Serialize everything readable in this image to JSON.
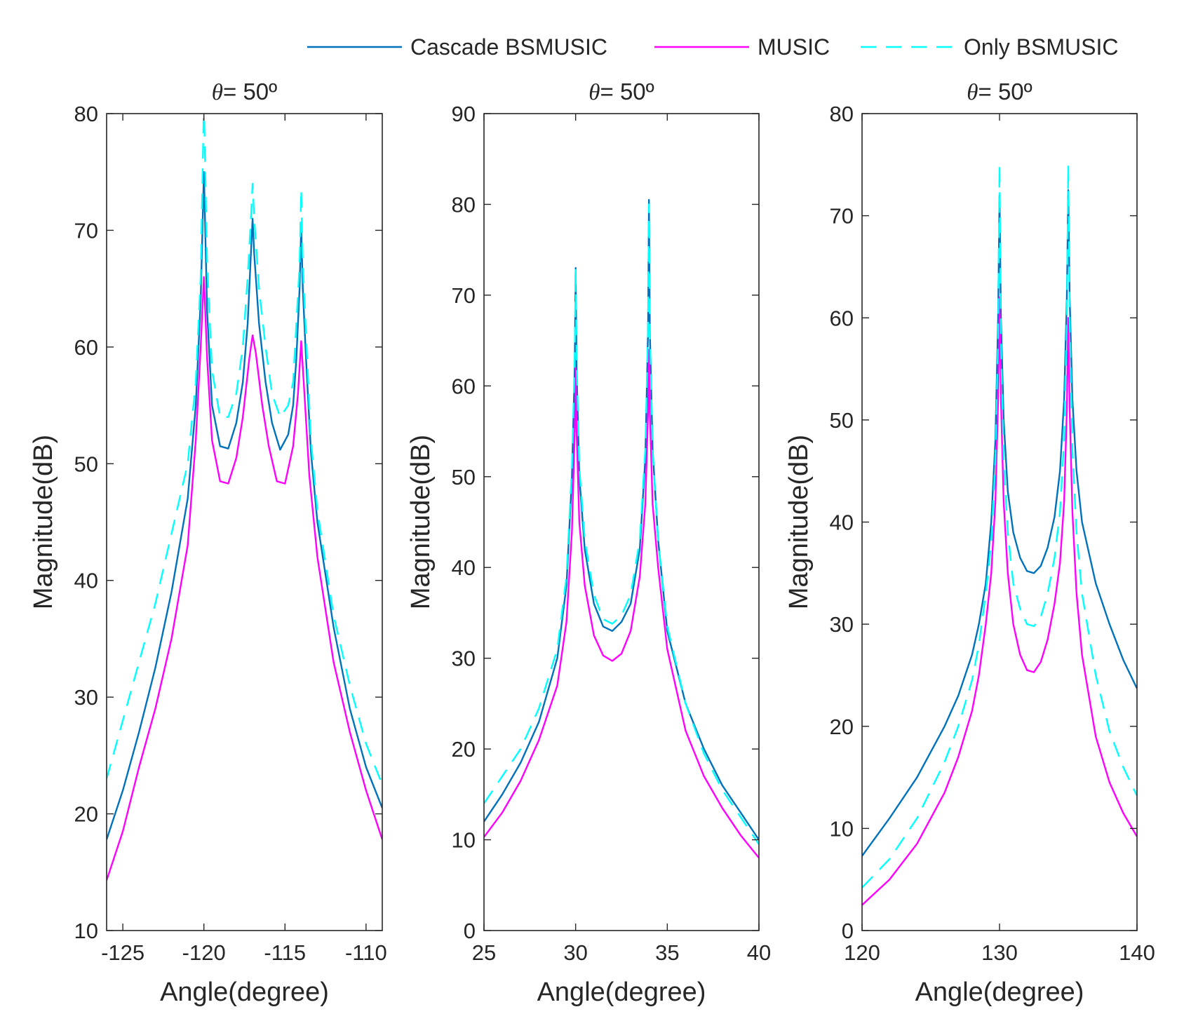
{
  "legend": {
    "placement": "top-center, horizontal",
    "entries": [
      {
        "label": "Cascade BSMUSIC",
        "color": "#0072bd",
        "dash": "solid"
      },
      {
        "label": "MUSIC",
        "color": "#ff00ff",
        "dash": "solid"
      },
      {
        "label": "Only BSMUSIC",
        "color": "#00ffff",
        "dash": "dashed"
      }
    ]
  },
  "colors": {
    "cascade": "#0072bd",
    "music": "#ff00ff",
    "only": "#00ffff",
    "axis": "#262626"
  },
  "chart_data": [
    {
      "type": "line",
      "title_symbol": "θ",
      "title_text": "= 50º",
      "xlabel": "Angle(degree)",
      "ylabel": "Magnitude(dB)",
      "xlim": [
        -126,
        -109
      ],
      "ylim": [
        10,
        80
      ],
      "xticks": [
        -125,
        -120,
        -115,
        -110
      ],
      "xtick_labels": [
        "-125",
        "-120",
        "-115",
        "-110"
      ],
      "yticks": [
        10,
        20,
        30,
        40,
        50,
        60,
        70,
        80
      ],
      "ytick_labels": [
        "10",
        "20",
        "30",
        "40",
        "50",
        "60",
        "70",
        "80"
      ],
      "grid": false,
      "series": [
        {
          "name": "Cascade BSMUSIC",
          "key": "cascade",
          "x": [
            -126,
            -125,
            -124,
            -123,
            -122,
            -121,
            -120.5,
            -120.2,
            -120,
            -119.8,
            -119.5,
            -119,
            -118.5,
            -118,
            -117.6,
            -117.3,
            -117.1,
            -117,
            -116.9,
            -116.6,
            -116.2,
            -115.8,
            -115.3,
            -114.8,
            -114.5,
            -114.3,
            -114.1,
            -114,
            -113.9,
            -113.7,
            -113.4,
            -113,
            -112,
            -111,
            -110,
            -109
          ],
          "y": [
            17.8,
            22,
            27,
            32.5,
            39,
            47,
            55,
            64,
            75,
            63,
            55,
            51.5,
            51.3,
            53.5,
            57,
            62,
            68,
            71,
            68,
            62,
            57,
            53.5,
            51.2,
            52.5,
            55,
            59,
            65,
            70.3,
            65,
            59,
            51,
            45,
            36,
            29,
            24,
            20.5
          ]
        },
        {
          "name": "MUSIC",
          "key": "music",
          "x": [
            -126,
            -125,
            -124,
            -123,
            -122,
            -121,
            -120.5,
            -120.2,
            -120,
            -119.8,
            -119.5,
            -119,
            -118.5,
            -118,
            -117.6,
            -117.2,
            -117,
            -116.8,
            -116.4,
            -116,
            -115.5,
            -115,
            -114.5,
            -114.2,
            -114,
            -113.8,
            -113.5,
            -113,
            -112,
            -111,
            -110,
            -109
          ],
          "y": [
            14.3,
            18.5,
            24,
            29,
            35,
            43,
            52,
            60,
            66,
            59,
            52,
            48.5,
            48.3,
            50.5,
            54,
            59,
            61,
            59.5,
            55,
            51.5,
            48.5,
            48.3,
            51.5,
            56,
            60.5,
            56,
            49,
            42,
            33,
            27,
            22,
            17.8
          ]
        },
        {
          "name": "Only BSMUSIC",
          "key": "only",
          "x": [
            -126,
            -125,
            -124,
            -123,
            -122,
            -121,
            -120.5,
            -120.2,
            -120,
            -119.8,
            -119.5,
            -119,
            -118.5,
            -118,
            -117.6,
            -117.3,
            -117.1,
            -117,
            -116.9,
            -116.6,
            -116.2,
            -115.8,
            -115.3,
            -114.8,
            -114.5,
            -114.3,
            -114.1,
            -114,
            -113.9,
            -113.7,
            -113.4,
            -113,
            -112,
            -111,
            -110,
            -109
          ],
          "y": [
            23,
            28,
            33,
            38,
            44,
            50,
            57,
            66,
            81,
            67,
            58,
            54,
            54,
            56,
            60,
            66,
            71,
            74,
            71,
            65,
            60,
            56,
            54,
            55,
            57,
            62,
            67,
            73.5,
            67,
            61,
            52,
            46,
            37,
            31,
            26,
            22.5
          ]
        }
      ]
    },
    {
      "type": "line",
      "title_symbol": "θ",
      "title_text": "= 50º",
      "xlabel": "Angle(degree)",
      "ylabel": "Magnitude(dB)",
      "xlim": [
        25,
        40
      ],
      "ylim": [
        0,
        90
      ],
      "xticks": [
        25,
        30,
        35,
        40
      ],
      "xtick_labels": [
        "25",
        "30",
        "35",
        "40"
      ],
      "yticks": [
        0,
        10,
        20,
        30,
        40,
        50,
        60,
        70,
        80,
        90
      ],
      "ytick_labels": [
        "0",
        "10",
        "20",
        "30",
        "40",
        "50",
        "60",
        "70",
        "80",
        "90"
      ],
      "grid": false,
      "series": [
        {
          "name": "Cascade BSMUSIC",
          "key": "cascade",
          "x": [
            25,
            26,
            27,
            28,
            29,
            29.5,
            29.8,
            29.95,
            30,
            30.05,
            30.2,
            30.5,
            31,
            31.5,
            32,
            32.5,
            33,
            33.5,
            33.8,
            33.95,
            34,
            34.05,
            34.2,
            34.5,
            35,
            36,
            37,
            38,
            39,
            40
          ],
          "y": [
            12,
            15,
            18.5,
            23,
            30,
            38,
            50,
            62,
            73,
            62,
            50,
            42,
            36,
            33.5,
            33,
            34,
            36,
            42,
            52,
            66,
            80.5,
            66,
            53,
            43,
            33,
            25,
            20,
            16,
            13,
            10
          ]
        },
        {
          "name": "MUSIC",
          "key": "music",
          "x": [
            25,
            26,
            27,
            28,
            29,
            29.5,
            29.8,
            29.95,
            30,
            30.05,
            30.2,
            30.5,
            31,
            31.5,
            32,
            32.5,
            33,
            33.5,
            33.8,
            33.95,
            34,
            34.05,
            34.2,
            34.5,
            35,
            36,
            37,
            38,
            39,
            40
          ],
          "y": [
            10.3,
            13,
            16.5,
            21,
            27,
            34,
            44,
            55,
            62,
            55,
            45,
            38,
            32.5,
            30.3,
            29.7,
            30.5,
            33,
            39,
            47,
            57,
            64,
            57,
            47,
            40,
            31,
            22,
            17,
            13.5,
            10.5,
            8
          ]
        },
        {
          "name": "Only BSMUSIC",
          "key": "only",
          "x": [
            25,
            26,
            27,
            28,
            29,
            29.5,
            29.8,
            29.95,
            30,
            30.05,
            30.2,
            30.5,
            31,
            31.5,
            32,
            32.5,
            33,
            33.5,
            33.8,
            33.95,
            34,
            34.05,
            34.2,
            34.5,
            35,
            36,
            37,
            38,
            39,
            40
          ],
          "y": [
            14,
            17,
            20,
            24.5,
            31,
            39,
            51,
            63,
            73,
            63,
            51,
            43,
            37,
            34.3,
            33.8,
            34.7,
            37,
            43,
            53,
            66,
            80,
            66,
            53,
            43,
            33.5,
            25,
            19.5,
            15.5,
            12.5,
            9.5
          ]
        }
      ]
    },
    {
      "type": "line",
      "title_symbol": "θ",
      "title_text": "= 50º",
      "xlabel": "Angle(degree)",
      "ylabel": "Magnitude(dB)",
      "xlim": [
        120,
        140
      ],
      "ylim": [
        0,
        80
      ],
      "xticks": [
        120,
        130,
        140
      ],
      "xtick_labels": [
        "120",
        "130",
        "140"
      ],
      "yticks": [
        0,
        10,
        20,
        30,
        40,
        50,
        60,
        70,
        80
      ],
      "ytick_labels": [
        "0",
        "10",
        "20",
        "30",
        "40",
        "50",
        "60",
        "70",
        "80"
      ],
      "grid": false,
      "series": [
        {
          "name": "Cascade BSMUSIC",
          "key": "cascade",
          "x": [
            120,
            122,
            124,
            126,
            127,
            128,
            128.5,
            129,
            129.4,
            129.7,
            129.9,
            130,
            130.1,
            130.3,
            130.6,
            131,
            131.5,
            132,
            132.5,
            133,
            133.5,
            134,
            134.4,
            134.7,
            134.9,
            135,
            135.1,
            135.3,
            135.6,
            136,
            137,
            138,
            139,
            140
          ],
          "y": [
            7.3,
            11,
            15,
            20,
            23,
            27,
            30,
            34,
            40,
            48,
            60,
            72,
            60,
            50,
            43,
            39,
            36.5,
            35.2,
            35,
            35.7,
            37.5,
            40.5,
            45,
            52,
            62,
            72.5,
            62,
            52,
            45,
            40,
            34,
            30,
            26.5,
            23.7
          ]
        },
        {
          "name": "MUSIC",
          "key": "music",
          "x": [
            120,
            122,
            124,
            126,
            127,
            128,
            128.5,
            129,
            129.4,
            129.7,
            129.9,
            130,
            130.1,
            130.3,
            130.6,
            131,
            131.5,
            132,
            132.5,
            133,
            133.5,
            134,
            134.4,
            134.7,
            134.9,
            135,
            135.1,
            135.3,
            135.6,
            136,
            137,
            138,
            139,
            140
          ],
          "y": [
            2.5,
            5,
            8.5,
            13.5,
            17,
            21.5,
            25,
            30,
            35,
            42,
            52,
            62,
            52,
            42,
            35,
            30,
            27,
            25.5,
            25.3,
            26.3,
            28.5,
            32,
            36,
            42,
            51,
            60,
            51,
            41,
            33,
            27,
            19,
            14.5,
            11.5,
            9.2
          ]
        },
        {
          "name": "Only BSMUSIC",
          "key": "only",
          "x": [
            120,
            122,
            124,
            126,
            127,
            128,
            128.5,
            129,
            129.4,
            129.7,
            129.9,
            130,
            130.1,
            130.3,
            130.6,
            131,
            131.5,
            132,
            132.5,
            133,
            133.5,
            134,
            134.4,
            134.7,
            134.9,
            135,
            135.1,
            135.3,
            135.6,
            136,
            137,
            138,
            139,
            140
          ],
          "y": [
            4.2,
            7,
            11,
            16.5,
            20,
            24.5,
            28,
            33,
            38,
            46,
            58,
            75,
            58,
            46,
            39,
            34,
            31.5,
            30,
            29.8,
            30.7,
            33,
            36.5,
            41,
            48,
            60,
            75,
            60,
            47,
            39,
            33,
            25,
            19.5,
            16,
            13.2
          ]
        }
      ]
    }
  ]
}
